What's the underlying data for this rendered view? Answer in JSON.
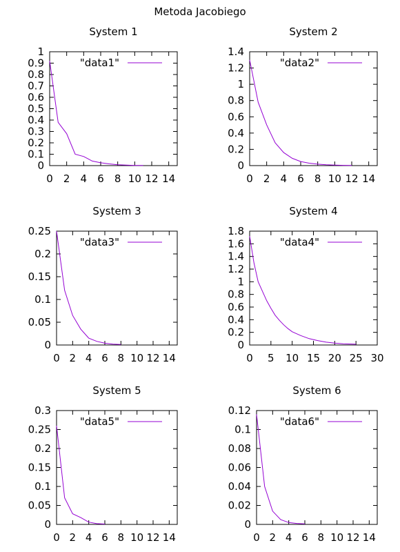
{
  "title": "Metoda Jacobiego",
  "series_color": "#9400d3",
  "chart_data": [
    {
      "type": "line",
      "title": "System 1",
      "xlim": [
        0,
        15
      ],
      "ylim": [
        0,
        1
      ],
      "xticks": [
        0,
        2,
        4,
        6,
        8,
        10,
        12,
        14
      ],
      "yticks": [
        0,
        0.1,
        0.2,
        0.3,
        0.4,
        0.5,
        0.6,
        0.7,
        0.8,
        0.9,
        1
      ],
      "ytick_labels": [
        "0",
        "0.1",
        "0.2",
        "0.3",
        "0.4",
        "0.5",
        "0.6",
        "0.7",
        "0.8",
        "0.9",
        "1"
      ],
      "legend": "top-right",
      "grid": false,
      "series": [
        {
          "name": "\"data1\"",
          "x": [
            0,
            1,
            2,
            3,
            4,
            5,
            6,
            7,
            8,
            9,
            10,
            11
          ],
          "y": [
            0.92,
            0.38,
            0.28,
            0.1,
            0.08,
            0.04,
            0.025,
            0.015,
            0.008,
            0.004,
            0.002,
            0.001
          ]
        }
      ]
    },
    {
      "type": "line",
      "title": "System 2",
      "xlim": [
        0,
        15
      ],
      "ylim": [
        0,
        1.4
      ],
      "xticks": [
        0,
        2,
        4,
        6,
        8,
        10,
        12,
        14
      ],
      "yticks": [
        0,
        0.2,
        0.4,
        0.6,
        0.8,
        1,
        1.2,
        1.4
      ],
      "ytick_labels": [
        "0",
        "0.2",
        "0.4",
        "0.6",
        "0.8",
        "1",
        "1.2",
        "1.4"
      ],
      "legend": "top-right",
      "grid": false,
      "series": [
        {
          "name": "\"data2\"",
          "x": [
            0,
            1,
            2,
            3,
            4,
            5,
            6,
            7,
            8,
            9,
            10,
            11,
            12
          ],
          "y": [
            1.3,
            0.78,
            0.5,
            0.28,
            0.16,
            0.09,
            0.05,
            0.03,
            0.018,
            0.01,
            0.006,
            0.003,
            0.002
          ]
        }
      ]
    },
    {
      "type": "line",
      "title": "System 3",
      "xlim": [
        0,
        15
      ],
      "ylim": [
        0,
        0.25
      ],
      "xticks": [
        0,
        2,
        4,
        6,
        8,
        10,
        12,
        14
      ],
      "yticks": [
        0,
        0.05,
        0.1,
        0.15,
        0.2,
        0.25
      ],
      "ytick_labels": [
        "0",
        "0.05",
        "0.1",
        "0.15",
        "0.2",
        "0.25"
      ],
      "legend": "top-right",
      "grid": false,
      "series": [
        {
          "name": "\"data3\"",
          "x": [
            0,
            1,
            2,
            3,
            4,
            5,
            6,
            7,
            8
          ],
          "y": [
            0.25,
            0.12,
            0.065,
            0.035,
            0.015,
            0.008,
            0.004,
            0.002,
            0.001
          ]
        }
      ]
    },
    {
      "type": "line",
      "title": "System 4",
      "xlim": [
        0,
        30
      ],
      "ylim": [
        0,
        1.8
      ],
      "xticks": [
        0,
        5,
        10,
        15,
        20,
        25,
        30
      ],
      "yticks": [
        0,
        0.2,
        0.4,
        0.6,
        0.8,
        1,
        1.2,
        1.4,
        1.6,
        1.8
      ],
      "ytick_labels": [
        "0",
        "0.2",
        "0.4",
        "0.6",
        "0.8",
        "1",
        "1.2",
        "1.4",
        "1.6",
        "1.8"
      ],
      "legend": "top-right",
      "grid": false,
      "series": [
        {
          "name": "\"data4\"",
          "x": [
            0,
            1,
            2,
            3,
            4,
            5,
            6,
            7,
            8,
            9,
            10,
            12,
            14,
            16,
            18,
            20,
            22,
            24,
            25
          ],
          "y": [
            1.72,
            1.3,
            1.0,
            0.85,
            0.7,
            0.58,
            0.47,
            0.39,
            0.32,
            0.26,
            0.21,
            0.15,
            0.1,
            0.07,
            0.045,
            0.03,
            0.02,
            0.015,
            0.012
          ]
        }
      ]
    },
    {
      "type": "line",
      "title": "System 5",
      "xlim": [
        0,
        15
      ],
      "ylim": [
        0,
        0.3
      ],
      "xticks": [
        0,
        2,
        4,
        6,
        8,
        10,
        12,
        14
      ],
      "yticks": [
        0,
        0.05,
        0.1,
        0.15,
        0.2,
        0.25,
        0.3
      ],
      "ytick_labels": [
        "0",
        "0.05",
        "0.1",
        "0.15",
        "0.2",
        "0.25",
        "0.3"
      ],
      "legend": "top-right",
      "grid": false,
      "series": [
        {
          "name": "\"data5\"",
          "x": [
            0,
            1,
            2,
            3,
            4,
            5,
            6
          ],
          "y": [
            0.26,
            0.07,
            0.028,
            0.018,
            0.006,
            0.002,
            0.001
          ]
        }
      ]
    },
    {
      "type": "line",
      "title": "System 6",
      "xlim": [
        0,
        15
      ],
      "ylim": [
        0,
        0.12
      ],
      "xticks": [
        0,
        2,
        4,
        6,
        8,
        10,
        12,
        14
      ],
      "yticks": [
        0,
        0.02,
        0.04,
        0.06,
        0.08,
        0.1,
        0.12
      ],
      "ytick_labels": [
        "0",
        "0.02",
        "0.04",
        "0.06",
        "0.08",
        "0.1",
        "0.12"
      ],
      "legend": "top-right",
      "grid": false,
      "series": [
        {
          "name": "\"data6\"",
          "x": [
            0,
            1,
            2,
            3,
            4,
            5,
            6
          ],
          "y": [
            0.116,
            0.04,
            0.014,
            0.005,
            0.002,
            0.001,
            0.0005
          ]
        }
      ]
    }
  ]
}
